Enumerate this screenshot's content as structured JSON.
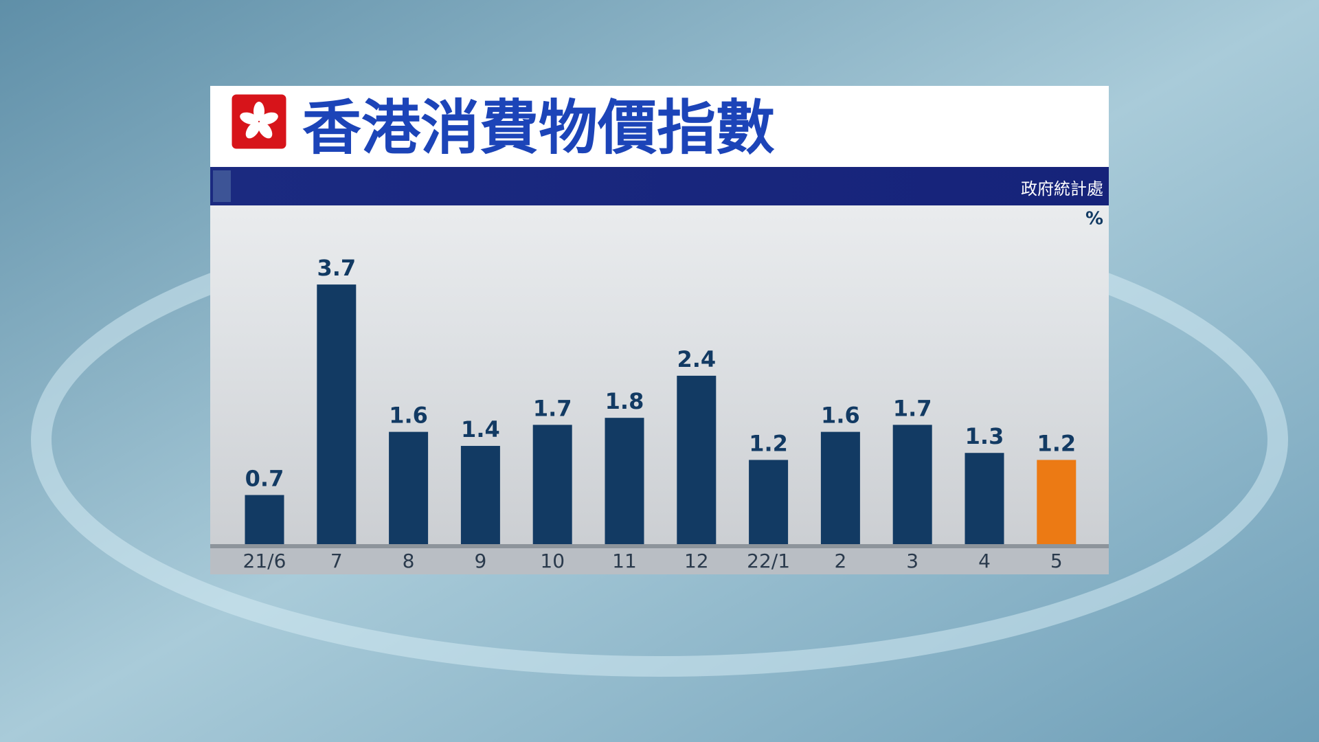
{
  "chart_data": {
    "type": "bar",
    "title": "香港消費物價指數",
    "source": "政府統計處",
    "unit": "%",
    "categories": [
      "21/6",
      "7",
      "8",
      "9",
      "10",
      "11",
      "12",
      "22/1",
      "2",
      "3",
      "4",
      "5"
    ],
    "values": [
      0.7,
      3.7,
      1.6,
      1.4,
      1.7,
      1.8,
      2.4,
      1.2,
      1.6,
      1.7,
      1.3,
      1.2
    ],
    "colors": [
      "#123a63",
      "#123a63",
      "#123a63",
      "#123a63",
      "#123a63",
      "#123a63",
      "#123a63",
      "#123a63",
      "#123a63",
      "#123a63",
      "#123a63",
      "#ec7a14"
    ],
    "ylim": [
      0,
      4.7
    ]
  }
}
